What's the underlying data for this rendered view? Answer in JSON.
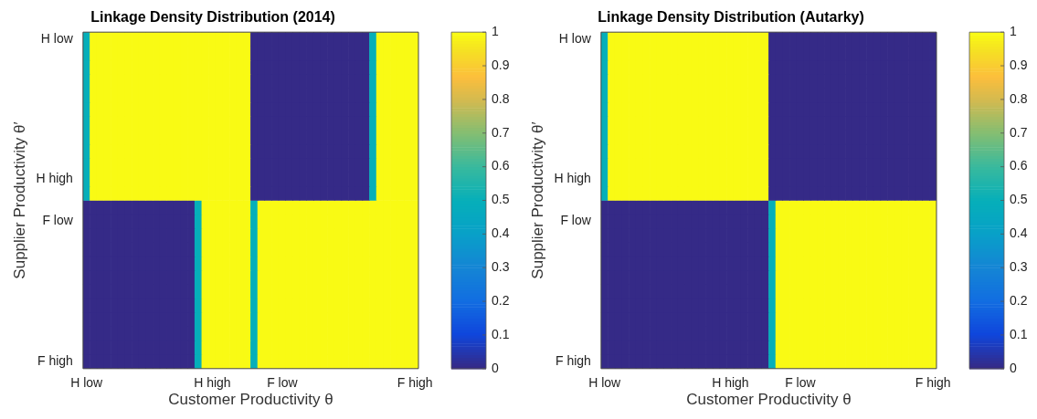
{
  "chart_data": [
    {
      "type": "heatmap",
      "title": "Linkage Density Distribution (2014)",
      "xlabel": "Customer Productivity θ",
      "ylabel": "Supplier Productivity θ′",
      "categories": [
        "H low",
        null,
        null,
        null,
        null,
        null,
        null,
        null,
        null,
        null,
        null,
        null,
        null,
        null,
        null,
        null,
        null,
        null,
        "H high",
        null,
        null,
        null,
        null,
        null,
        null,
        null,
        null,
        null,
        "F low",
        null,
        null,
        null,
        null,
        null,
        null,
        null,
        null,
        null,
        null,
        null,
        null,
        null,
        null,
        null,
        null,
        null,
        null,
        "F high"
      ],
      "y_categories": [
        "H low",
        null,
        null,
        null,
        null,
        null,
        null,
        null,
        null,
        null,
        "H high",
        null,
        null,
        "F low",
        null,
        null,
        null,
        null,
        null,
        null,
        null,
        null,
        null,
        "F high"
      ],
      "clim": [
        0,
        1
      ],
      "cticks": [
        0,
        0.1,
        0.2,
        0.3,
        0.4,
        0.5,
        0.6,
        0.7,
        0.8,
        0.9,
        1
      ],
      "cells": [
        [
          0.5,
          1,
          1,
          1,
          1,
          1,
          1,
          1,
          1,
          1,
          1,
          1,
          1,
          1,
          1,
          1,
          1,
          1,
          1,
          1,
          1,
          1,
          1,
          1,
          0,
          0,
          0,
          0,
          0,
          0,
          0,
          0,
          0,
          0,
          0,
          0,
          0,
          0,
          0,
          0,
          0,
          0.5,
          1,
          1,
          1,
          1,
          1,
          1
        ],
        [
          0.5,
          1,
          1,
          1,
          1,
          1,
          1,
          1,
          1,
          1,
          1,
          1,
          1,
          1,
          1,
          1,
          1,
          1,
          1,
          1,
          1,
          1,
          1,
          1,
          0,
          0,
          0,
          0,
          0,
          0,
          0,
          0,
          0,
          0,
          0,
          0,
          0,
          0,
          0,
          0,
          0,
          0.5,
          1,
          1,
          1,
          1,
          1,
          1
        ],
        [
          0.5,
          1,
          1,
          1,
          1,
          1,
          1,
          1,
          1,
          1,
          1,
          1,
          1,
          1,
          1,
          1,
          1,
          1,
          1,
          1,
          1,
          1,
          1,
          1,
          0,
          0,
          0,
          0,
          0,
          0,
          0,
          0,
          0,
          0,
          0,
          0,
          0,
          0,
          0,
          0,
          0,
          0.5,
          1,
          1,
          1,
          1,
          1,
          1
        ],
        [
          0.5,
          1,
          1,
          1,
          1,
          1,
          1,
          1,
          1,
          1,
          1,
          1,
          1,
          1,
          1,
          1,
          1,
          1,
          1,
          1,
          1,
          1,
          1,
          1,
          0,
          0,
          0,
          0,
          0,
          0,
          0,
          0,
          0,
          0,
          0,
          0,
          0,
          0,
          0,
          0,
          0,
          0.5,
          1,
          1,
          1,
          1,
          1,
          1
        ],
        [
          0.5,
          1,
          1,
          1,
          1,
          1,
          1,
          1,
          1,
          1,
          1,
          1,
          1,
          1,
          1,
          1,
          1,
          1,
          1,
          1,
          1,
          1,
          1,
          1,
          0,
          0,
          0,
          0,
          0,
          0,
          0,
          0,
          0,
          0,
          0,
          0,
          0,
          0,
          0,
          0,
          0,
          0.5,
          1,
          1,
          1,
          1,
          1,
          1
        ],
        [
          0.5,
          1,
          1,
          1,
          1,
          1,
          1,
          1,
          1,
          1,
          1,
          1,
          1,
          1,
          1,
          1,
          1,
          1,
          1,
          1,
          1,
          1,
          1,
          1,
          0,
          0,
          0,
          0,
          0,
          0,
          0,
          0,
          0,
          0,
          0,
          0,
          0,
          0,
          0,
          0,
          0,
          0.5,
          1,
          1,
          1,
          1,
          1,
          1
        ],
        [
          0.5,
          1,
          1,
          1,
          1,
          1,
          1,
          1,
          1,
          1,
          1,
          1,
          1,
          1,
          1,
          1,
          1,
          1,
          1,
          1,
          1,
          1,
          1,
          1,
          0,
          0,
          0,
          0,
          0,
          0,
          0,
          0,
          0,
          0,
          0,
          0,
          0,
          0,
          0,
          0,
          0,
          0.5,
          1,
          1,
          1,
          1,
          1,
          1
        ],
        [
          0.5,
          1,
          1,
          1,
          1,
          1,
          1,
          1,
          1,
          1,
          1,
          1,
          1,
          1,
          1,
          1,
          1,
          1,
          1,
          1,
          1,
          1,
          1,
          1,
          0,
          0,
          0,
          0,
          0,
          0,
          0,
          0,
          0,
          0,
          0,
          0,
          0,
          0,
          0,
          0,
          0,
          0.5,
          1,
          1,
          1,
          1,
          1,
          1
        ],
        [
          0.5,
          1,
          1,
          1,
          1,
          1,
          1,
          1,
          1,
          1,
          1,
          1,
          1,
          1,
          1,
          1,
          1,
          1,
          1,
          1,
          1,
          1,
          1,
          1,
          0,
          0,
          0,
          0,
          0,
          0,
          0,
          0,
          0,
          0,
          0,
          0,
          0,
          0,
          0,
          0,
          0,
          0.5,
          1,
          1,
          1,
          1,
          1,
          1
        ],
        [
          0.5,
          1,
          1,
          1,
          1,
          1,
          1,
          1,
          1,
          1,
          1,
          1,
          1,
          1,
          1,
          1,
          1,
          1,
          1,
          1,
          1,
          1,
          1,
          1,
          0,
          0,
          0,
          0,
          0,
          0,
          0,
          0,
          0,
          0,
          0,
          0,
          0,
          0,
          0,
          0,
          0,
          0.5,
          1,
          1,
          1,
          1,
          1,
          1
        ],
        [
          0.5,
          1,
          1,
          1,
          1,
          1,
          1,
          1,
          1,
          1,
          1,
          1,
          1,
          1,
          1,
          1,
          1,
          1,
          1,
          1,
          1,
          1,
          1,
          1,
          0,
          0,
          0,
          0,
          0,
          0,
          0,
          0,
          0,
          0,
          0,
          0,
          0,
          0,
          0,
          0,
          0,
          0.5,
          1,
          1,
          1,
          1,
          1,
          1
        ],
        [
          0.5,
          1,
          1,
          1,
          1,
          1,
          1,
          1,
          1,
          1,
          1,
          1,
          1,
          1,
          1,
          1,
          1,
          1,
          1,
          1,
          1,
          1,
          1,
          1,
          0,
          0,
          0,
          0,
          0,
          0,
          0,
          0,
          0,
          0,
          0,
          0,
          0,
          0,
          0,
          0,
          0,
          0.5,
          1,
          1,
          1,
          1,
          1,
          1
        ],
        [
          0,
          0,
          0,
          0,
          0,
          0,
          0,
          0,
          0,
          0,
          0,
          0,
          0,
          0,
          0,
          0,
          0.5,
          1,
          1,
          1,
          1,
          1,
          1,
          1,
          0.5,
          1,
          1,
          1,
          1,
          1,
          1,
          1,
          1,
          1,
          1,
          1,
          1,
          1,
          1,
          1,
          1,
          1,
          1,
          1,
          1,
          1,
          1,
          1
        ],
        [
          0,
          0,
          0,
          0,
          0,
          0,
          0,
          0,
          0,
          0,
          0,
          0,
          0,
          0,
          0,
          0,
          0.5,
          1,
          1,
          1,
          1,
          1,
          1,
          1,
          0.5,
          1,
          1,
          1,
          1,
          1,
          1,
          1,
          1,
          1,
          1,
          1,
          1,
          1,
          1,
          1,
          1,
          1,
          1,
          1,
          1,
          1,
          1,
          1
        ],
        [
          0,
          0,
          0,
          0,
          0,
          0,
          0,
          0,
          0,
          0,
          0,
          0,
          0,
          0,
          0,
          0,
          0.5,
          1,
          1,
          1,
          1,
          1,
          1,
          1,
          0.5,
          1,
          1,
          1,
          1,
          1,
          1,
          1,
          1,
          1,
          1,
          1,
          1,
          1,
          1,
          1,
          1,
          1,
          1,
          1,
          1,
          1,
          1,
          1
        ],
        [
          0,
          0,
          0,
          0,
          0,
          0,
          0,
          0,
          0,
          0,
          0,
          0,
          0,
          0,
          0,
          0,
          0.5,
          1,
          1,
          1,
          1,
          1,
          1,
          1,
          0.5,
          1,
          1,
          1,
          1,
          1,
          1,
          1,
          1,
          1,
          1,
          1,
          1,
          1,
          1,
          1,
          1,
          1,
          1,
          1,
          1,
          1,
          1,
          1
        ],
        [
          0,
          0,
          0,
          0,
          0,
          0,
          0,
          0,
          0,
          0,
          0,
          0,
          0,
          0,
          0,
          0,
          0.5,
          1,
          1,
          1,
          1,
          1,
          1,
          1,
          0.5,
          1,
          1,
          1,
          1,
          1,
          1,
          1,
          1,
          1,
          1,
          1,
          1,
          1,
          1,
          1,
          1,
          1,
          1,
          1,
          1,
          1,
          1,
          1
        ],
        [
          0,
          0,
          0,
          0,
          0,
          0,
          0,
          0,
          0,
          0,
          0,
          0,
          0,
          0,
          0,
          0,
          0.5,
          1,
          1,
          1,
          1,
          1,
          1,
          1,
          0.5,
          1,
          1,
          1,
          1,
          1,
          1,
          1,
          1,
          1,
          1,
          1,
          1,
          1,
          1,
          1,
          1,
          1,
          1,
          1,
          1,
          1,
          1,
          1
        ],
        [
          0,
          0,
          0,
          0,
          0,
          0,
          0,
          0,
          0,
          0,
          0,
          0,
          0,
          0,
          0,
          0,
          0.5,
          1,
          1,
          1,
          1,
          1,
          1,
          1,
          0.5,
          1,
          1,
          1,
          1,
          1,
          1,
          1,
          1,
          1,
          1,
          1,
          1,
          1,
          1,
          1,
          1,
          1,
          1,
          1,
          1,
          1,
          1,
          1
        ],
        [
          0,
          0,
          0,
          0,
          0,
          0,
          0,
          0,
          0,
          0,
          0,
          0,
          0,
          0,
          0,
          0,
          0.5,
          1,
          1,
          1,
          1,
          1,
          1,
          1,
          0.5,
          1,
          1,
          1,
          1,
          1,
          1,
          1,
          1,
          1,
          1,
          1,
          1,
          1,
          1,
          1,
          1,
          1,
          1,
          1,
          1,
          1,
          1,
          1
        ],
        [
          0,
          0,
          0,
          0,
          0,
          0,
          0,
          0,
          0,
          0,
          0,
          0,
          0,
          0,
          0,
          0,
          0.5,
          1,
          1,
          1,
          1,
          1,
          1,
          1,
          0.5,
          1,
          1,
          1,
          1,
          1,
          1,
          1,
          1,
          1,
          1,
          1,
          1,
          1,
          1,
          1,
          1,
          1,
          1,
          1,
          1,
          1,
          1,
          1
        ],
        [
          0,
          0,
          0,
          0,
          0,
          0,
          0,
          0,
          0,
          0,
          0,
          0,
          0,
          0,
          0,
          0,
          0.5,
          1,
          1,
          1,
          1,
          1,
          1,
          1,
          0.5,
          1,
          1,
          1,
          1,
          1,
          1,
          1,
          1,
          1,
          1,
          1,
          1,
          1,
          1,
          1,
          1,
          1,
          1,
          1,
          1,
          1,
          1,
          1
        ],
        [
          0,
          0,
          0,
          0,
          0,
          0,
          0,
          0,
          0,
          0,
          0,
          0,
          0,
          0,
          0,
          0,
          0.5,
          1,
          1,
          1,
          1,
          1,
          1,
          1,
          0.5,
          1,
          1,
          1,
          1,
          1,
          1,
          1,
          1,
          1,
          1,
          1,
          1,
          1,
          1,
          1,
          1,
          1,
          1,
          1,
          1,
          1,
          1,
          1
        ],
        [
          0,
          0,
          0,
          0,
          0,
          0,
          0,
          0,
          0,
          0,
          0,
          0,
          0,
          0,
          0,
          0,
          0.5,
          1,
          1,
          1,
          1,
          1,
          1,
          1,
          0.5,
          1,
          1,
          1,
          1,
          1,
          1,
          1,
          1,
          1,
          1,
          1,
          1,
          1,
          1,
          1,
          1,
          1,
          1,
          1,
          1,
          1,
          1,
          1
        ]
      ]
    },
    {
      "type": "heatmap",
      "title": "Linkage Density Distribution (Autarky)",
      "xlabel": "Customer Productivity θ",
      "ylabel": "Supplier Productivity θ′",
      "categories": [
        "H low",
        null,
        null,
        null,
        null,
        null,
        null,
        null,
        null,
        null,
        null,
        null,
        null,
        null,
        null,
        null,
        null,
        null,
        "H high",
        null,
        null,
        null,
        null,
        null,
        null,
        null,
        null,
        null,
        "F low",
        null,
        null,
        null,
        null,
        null,
        null,
        null,
        null,
        null,
        null,
        null,
        null,
        null,
        null,
        null,
        null,
        null,
        null,
        "F high"
      ],
      "y_categories": [
        "H low",
        null,
        null,
        null,
        null,
        null,
        null,
        null,
        null,
        null,
        "H high",
        null,
        null,
        "F low",
        null,
        null,
        null,
        null,
        null,
        null,
        null,
        null,
        null,
        "F high"
      ],
      "clim": [
        0,
        1
      ],
      "cticks": [
        0,
        0.1,
        0.2,
        0.3,
        0.4,
        0.5,
        0.6,
        0.7,
        0.8,
        0.9,
        1
      ],
      "cells": [
        [
          0.5,
          1,
          1,
          1,
          1,
          1,
          1,
          1,
          1,
          1,
          1,
          1,
          1,
          1,
          1,
          1,
          1,
          1,
          1,
          1,
          1,
          1,
          1,
          1,
          0,
          0,
          0,
          0,
          0,
          0,
          0,
          0,
          0,
          0,
          0,
          0,
          0,
          0,
          0,
          0,
          0,
          0,
          0,
          0,
          0,
          0,
          0,
          0
        ],
        [
          0.5,
          1,
          1,
          1,
          1,
          1,
          1,
          1,
          1,
          1,
          1,
          1,
          1,
          1,
          1,
          1,
          1,
          1,
          1,
          1,
          1,
          1,
          1,
          1,
          0,
          0,
          0,
          0,
          0,
          0,
          0,
          0,
          0,
          0,
          0,
          0,
          0,
          0,
          0,
          0,
          0,
          0,
          0,
          0,
          0,
          0,
          0,
          0
        ],
        [
          0.5,
          1,
          1,
          1,
          1,
          1,
          1,
          1,
          1,
          1,
          1,
          1,
          1,
          1,
          1,
          1,
          1,
          1,
          1,
          1,
          1,
          1,
          1,
          1,
          0,
          0,
          0,
          0,
          0,
          0,
          0,
          0,
          0,
          0,
          0,
          0,
          0,
          0,
          0,
          0,
          0,
          0,
          0,
          0,
          0,
          0,
          0,
          0
        ],
        [
          0.5,
          1,
          1,
          1,
          1,
          1,
          1,
          1,
          1,
          1,
          1,
          1,
          1,
          1,
          1,
          1,
          1,
          1,
          1,
          1,
          1,
          1,
          1,
          1,
          0,
          0,
          0,
          0,
          0,
          0,
          0,
          0,
          0,
          0,
          0,
          0,
          0,
          0,
          0,
          0,
          0,
          0,
          0,
          0,
          0,
          0,
          0,
          0
        ],
        [
          0.5,
          1,
          1,
          1,
          1,
          1,
          1,
          1,
          1,
          1,
          1,
          1,
          1,
          1,
          1,
          1,
          1,
          1,
          1,
          1,
          1,
          1,
          1,
          1,
          0,
          0,
          0,
          0,
          0,
          0,
          0,
          0,
          0,
          0,
          0,
          0,
          0,
          0,
          0,
          0,
          0,
          0,
          0,
          0,
          0,
          0,
          0,
          0
        ],
        [
          0.5,
          1,
          1,
          1,
          1,
          1,
          1,
          1,
          1,
          1,
          1,
          1,
          1,
          1,
          1,
          1,
          1,
          1,
          1,
          1,
          1,
          1,
          1,
          1,
          0,
          0,
          0,
          0,
          0,
          0,
          0,
          0,
          0,
          0,
          0,
          0,
          0,
          0,
          0,
          0,
          0,
          0,
          0,
          0,
          0,
          0,
          0,
          0
        ],
        [
          0.5,
          1,
          1,
          1,
          1,
          1,
          1,
          1,
          1,
          1,
          1,
          1,
          1,
          1,
          1,
          1,
          1,
          1,
          1,
          1,
          1,
          1,
          1,
          1,
          0,
          0,
          0,
          0,
          0,
          0,
          0,
          0,
          0,
          0,
          0,
          0,
          0,
          0,
          0,
          0,
          0,
          0,
          0,
          0,
          0,
          0,
          0,
          0
        ],
        [
          0.5,
          1,
          1,
          1,
          1,
          1,
          1,
          1,
          1,
          1,
          1,
          1,
          1,
          1,
          1,
          1,
          1,
          1,
          1,
          1,
          1,
          1,
          1,
          1,
          0,
          0,
          0,
          0,
          0,
          0,
          0,
          0,
          0,
          0,
          0,
          0,
          0,
          0,
          0,
          0,
          0,
          0,
          0,
          0,
          0,
          0,
          0,
          0
        ],
        [
          0.5,
          1,
          1,
          1,
          1,
          1,
          1,
          1,
          1,
          1,
          1,
          1,
          1,
          1,
          1,
          1,
          1,
          1,
          1,
          1,
          1,
          1,
          1,
          1,
          0,
          0,
          0,
          0,
          0,
          0,
          0,
          0,
          0,
          0,
          0,
          0,
          0,
          0,
          0,
          0,
          0,
          0,
          0,
          0,
          0,
          0,
          0,
          0
        ],
        [
          0.5,
          1,
          1,
          1,
          1,
          1,
          1,
          1,
          1,
          1,
          1,
          1,
          1,
          1,
          1,
          1,
          1,
          1,
          1,
          1,
          1,
          1,
          1,
          1,
          0,
          0,
          0,
          0,
          0,
          0,
          0,
          0,
          0,
          0,
          0,
          0,
          0,
          0,
          0,
          0,
          0,
          0,
          0,
          0,
          0,
          0,
          0,
          0
        ],
        [
          0.5,
          1,
          1,
          1,
          1,
          1,
          1,
          1,
          1,
          1,
          1,
          1,
          1,
          1,
          1,
          1,
          1,
          1,
          1,
          1,
          1,
          1,
          1,
          1,
          0,
          0,
          0,
          0,
          0,
          0,
          0,
          0,
          0,
          0,
          0,
          0,
          0,
          0,
          0,
          0,
          0,
          0,
          0,
          0,
          0,
          0,
          0,
          0
        ],
        [
          0.5,
          1,
          1,
          1,
          1,
          1,
          1,
          1,
          1,
          1,
          1,
          1,
          1,
          1,
          1,
          1,
          1,
          1,
          1,
          1,
          1,
          1,
          1,
          1,
          0,
          0,
          0,
          0,
          0,
          0,
          0,
          0,
          0,
          0,
          0,
          0,
          0,
          0,
          0,
          0,
          0,
          0,
          0,
          0,
          0,
          0,
          0,
          0
        ],
        [
          0,
          0,
          0,
          0,
          0,
          0,
          0,
          0,
          0,
          0,
          0,
          0,
          0,
          0,
          0,
          0,
          0,
          0,
          0,
          0,
          0,
          0,
          0,
          0,
          0.5,
          1,
          1,
          1,
          1,
          1,
          1,
          1,
          1,
          1,
          1,
          1,
          1,
          1,
          1,
          1,
          1,
          1,
          1,
          1,
          1,
          1,
          1,
          1
        ],
        [
          0,
          0,
          0,
          0,
          0,
          0,
          0,
          0,
          0,
          0,
          0,
          0,
          0,
          0,
          0,
          0,
          0,
          0,
          0,
          0,
          0,
          0,
          0,
          0,
          0.5,
          1,
          1,
          1,
          1,
          1,
          1,
          1,
          1,
          1,
          1,
          1,
          1,
          1,
          1,
          1,
          1,
          1,
          1,
          1,
          1,
          1,
          1,
          1
        ],
        [
          0,
          0,
          0,
          0,
          0,
          0,
          0,
          0,
          0,
          0,
          0,
          0,
          0,
          0,
          0,
          0,
          0,
          0,
          0,
          0,
          0,
          0,
          0,
          0,
          0.5,
          1,
          1,
          1,
          1,
          1,
          1,
          1,
          1,
          1,
          1,
          1,
          1,
          1,
          1,
          1,
          1,
          1,
          1,
          1,
          1,
          1,
          1,
          1
        ],
        [
          0,
          0,
          0,
          0,
          0,
          0,
          0,
          0,
          0,
          0,
          0,
          0,
          0,
          0,
          0,
          0,
          0,
          0,
          0,
          0,
          0,
          0,
          0,
          0,
          0.5,
          1,
          1,
          1,
          1,
          1,
          1,
          1,
          1,
          1,
          1,
          1,
          1,
          1,
          1,
          1,
          1,
          1,
          1,
          1,
          1,
          1,
          1,
          1
        ],
        [
          0,
          0,
          0,
          0,
          0,
          0,
          0,
          0,
          0,
          0,
          0,
          0,
          0,
          0,
          0,
          0,
          0,
          0,
          0,
          0,
          0,
          0,
          0,
          0,
          0.5,
          1,
          1,
          1,
          1,
          1,
          1,
          1,
          1,
          1,
          1,
          1,
          1,
          1,
          1,
          1,
          1,
          1,
          1,
          1,
          1,
          1,
          1,
          1
        ],
        [
          0,
          0,
          0,
          0,
          0,
          0,
          0,
          0,
          0,
          0,
          0,
          0,
          0,
          0,
          0,
          0,
          0,
          0,
          0,
          0,
          0,
          0,
          0,
          0,
          0.5,
          1,
          1,
          1,
          1,
          1,
          1,
          1,
          1,
          1,
          1,
          1,
          1,
          1,
          1,
          1,
          1,
          1,
          1,
          1,
          1,
          1,
          1,
          1
        ],
        [
          0,
          0,
          0,
          0,
          0,
          0,
          0,
          0,
          0,
          0,
          0,
          0,
          0,
          0,
          0,
          0,
          0,
          0,
          0,
          0,
          0,
          0,
          0,
          0,
          0.5,
          1,
          1,
          1,
          1,
          1,
          1,
          1,
          1,
          1,
          1,
          1,
          1,
          1,
          1,
          1,
          1,
          1,
          1,
          1,
          1,
          1,
          1,
          1
        ],
        [
          0,
          0,
          0,
          0,
          0,
          0,
          0,
          0,
          0,
          0,
          0,
          0,
          0,
          0,
          0,
          0,
          0,
          0,
          0,
          0,
          0,
          0,
          0,
          0,
          0.5,
          1,
          1,
          1,
          1,
          1,
          1,
          1,
          1,
          1,
          1,
          1,
          1,
          1,
          1,
          1,
          1,
          1,
          1,
          1,
          1,
          1,
          1,
          1
        ],
        [
          0,
          0,
          0,
          0,
          0,
          0,
          0,
          0,
          0,
          0,
          0,
          0,
          0,
          0,
          0,
          0,
          0,
          0,
          0,
          0,
          0,
          0,
          0,
          0,
          0.5,
          1,
          1,
          1,
          1,
          1,
          1,
          1,
          1,
          1,
          1,
          1,
          1,
          1,
          1,
          1,
          1,
          1,
          1,
          1,
          1,
          1,
          1,
          1
        ],
        [
          0,
          0,
          0,
          0,
          0,
          0,
          0,
          0,
          0,
          0,
          0,
          0,
          0,
          0,
          0,
          0,
          0,
          0,
          0,
          0,
          0,
          0,
          0,
          0,
          0.5,
          1,
          1,
          1,
          1,
          1,
          1,
          1,
          1,
          1,
          1,
          1,
          1,
          1,
          1,
          1,
          1,
          1,
          1,
          1,
          1,
          1,
          1,
          1
        ],
        [
          0,
          0,
          0,
          0,
          0,
          0,
          0,
          0,
          0,
          0,
          0,
          0,
          0,
          0,
          0,
          0,
          0,
          0,
          0,
          0,
          0,
          0,
          0,
          0,
          0.5,
          1,
          1,
          1,
          1,
          1,
          1,
          1,
          1,
          1,
          1,
          1,
          1,
          1,
          1,
          1,
          1,
          1,
          1,
          1,
          1,
          1,
          1,
          1
        ],
        [
          0,
          0,
          0,
          0,
          0,
          0,
          0,
          0,
          0,
          0,
          0,
          0,
          0,
          0,
          0,
          0,
          0,
          0,
          0,
          0,
          0,
          0,
          0,
          0,
          0.5,
          1,
          1,
          1,
          1,
          1,
          1,
          1,
          1,
          1,
          1,
          1,
          1,
          1,
          1,
          1,
          1,
          1,
          1,
          1,
          1,
          1,
          1,
          1
        ]
      ]
    }
  ]
}
